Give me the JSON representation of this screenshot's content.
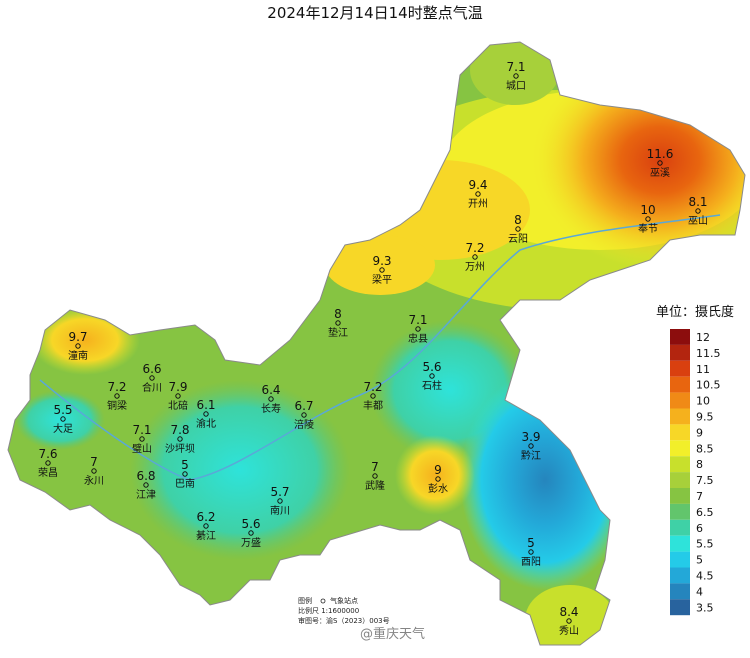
{
  "title": "2024年12月14日14时整点气温",
  "stations": [
    {
      "name": "城口",
      "value": 7.1
    },
    {
      "name": "巫溪",
      "value": 11.6
    },
    {
      "name": "开州",
      "value": 9.4
    },
    {
      "name": "云阳",
      "value": 8
    },
    {
      "name": "奉节",
      "value": 10
    },
    {
      "name": "巫山",
      "value": 8.1
    },
    {
      "name": "万州",
      "value": 7.2
    },
    {
      "name": "梁平",
      "value": 9.3
    },
    {
      "name": "垫江",
      "value": 8
    },
    {
      "name": "忠县",
      "value": 7.1
    },
    {
      "name": "石柱",
      "value": 5.6
    },
    {
      "name": "潼南",
      "value": 9.7
    },
    {
      "name": "合川",
      "value": 6.6
    },
    {
      "name": "铜梁",
      "value": 7.2
    },
    {
      "name": "北碚",
      "value": 7.9
    },
    {
      "name": "渝北",
      "value": 6.1
    },
    {
      "name": "长寿",
      "value": 6.4
    },
    {
      "name": "涪陵",
      "value": 6.7
    },
    {
      "name": "丰都",
      "value": 7.2
    },
    {
      "name": "大足",
      "value": 5.5
    },
    {
      "name": "璧山",
      "value": 7.1
    },
    {
      "name": "沙坪坝",
      "value": 7.8
    },
    {
      "name": "黔江",
      "value": 3.9
    },
    {
      "name": "荣昌",
      "value": 7.6
    },
    {
      "name": "永川",
      "value": 7
    },
    {
      "name": "巴南",
      "value": 5
    },
    {
      "name": "武隆",
      "value": 7
    },
    {
      "name": "彭水",
      "value": 9
    },
    {
      "name": "江津",
      "value": 6.8
    },
    {
      "name": "南川",
      "value": 5.7
    },
    {
      "name": "綦江",
      "value": 6.2
    },
    {
      "name": "万盛",
      "value": 5.6
    },
    {
      "name": "酉阳",
      "value": 5
    },
    {
      "name": "秀山",
      "value": 8.4
    }
  ],
  "legend": {
    "title": "单位：摄氏度",
    "items": [
      {
        "value": 12,
        "color": "#8c0d0d"
      },
      {
        "value": 11.5,
        "color": "#b3250f"
      },
      {
        "value": 11,
        "color": "#d9400f"
      },
      {
        "value": 10.5,
        "color": "#e8650f"
      },
      {
        "value": 10,
        "color": "#f08a16"
      },
      {
        "value": 9.5,
        "color": "#f5b11d"
      },
      {
        "value": 9,
        "color": "#f7d727"
      },
      {
        "value": 8.5,
        "color": "#f2ef2a"
      },
      {
        "value": 8,
        "color": "#c8e02c"
      },
      {
        "value": 7.5,
        "color": "#a7d03a"
      },
      {
        "value": 7,
        "color": "#86c442"
      },
      {
        "value": 6.5,
        "color": "#62c56c"
      },
      {
        "value": 6,
        "color": "#3fd1a6"
      },
      {
        "value": 5.5,
        "color": "#2ee3da"
      },
      {
        "value": 5,
        "color": "#24cbe8"
      },
      {
        "value": 4.5,
        "color": "#23a8d8"
      },
      {
        "value": 4,
        "color": "#2585bd"
      },
      {
        "value": 3.5,
        "color": "#28639e"
      }
    ]
  },
  "footer": {
    "legend_label": "图例",
    "station_label": "气象站点",
    "scale": "比例尺  1:1600000",
    "approval": "审图号：渝S（2023）003号"
  },
  "watermark": "@重庆天气"
}
